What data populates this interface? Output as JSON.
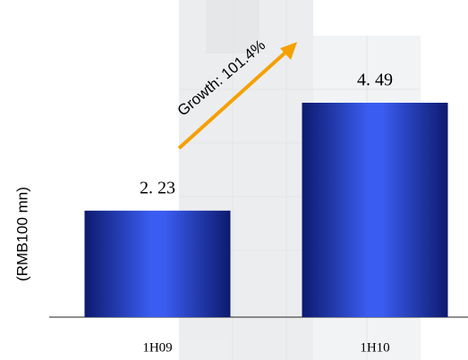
{
  "chart_data": {
    "type": "bar",
    "y_label": "(RMB100 mn)",
    "annotation": "Growth: 101.4%",
    "categories": [
      "1H09",
      "1H10"
    ],
    "values": [
      2.23,
      4.49
    ],
    "value_labels": [
      "2. 23",
      "4. 49"
    ],
    "color": "#2a46d8"
  }
}
